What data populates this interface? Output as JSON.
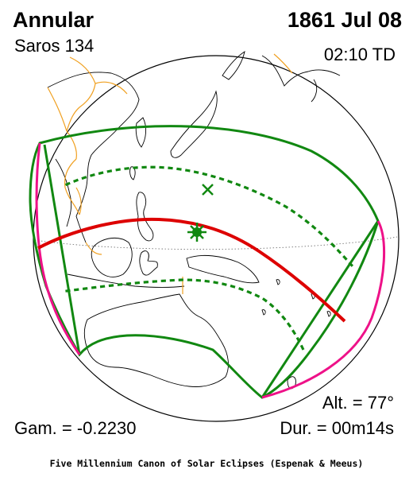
{
  "header": {
    "eclipse_type": "Annular",
    "date": "1861 Jul 08",
    "saros": "Saros 134",
    "time": "02:10 TD"
  },
  "parameters": {
    "gamma": "Gam. = -0.2230",
    "altitude": "Alt. = 77°",
    "duration": "Dur. = 00m14s"
  },
  "footer": "Five Millennium Canon of Solar Eclipses (Espenak & Meeus)",
  "colors": {
    "central_path": "#dd0000",
    "penumbra_boundary": "#118811",
    "rise_set_curve": "#ee1188",
    "borders": "#f0a020",
    "coastline": "#000000"
  },
  "markers": {
    "greatest_eclipse": "green-star",
    "sub_solar_point": "green-x"
  }
}
